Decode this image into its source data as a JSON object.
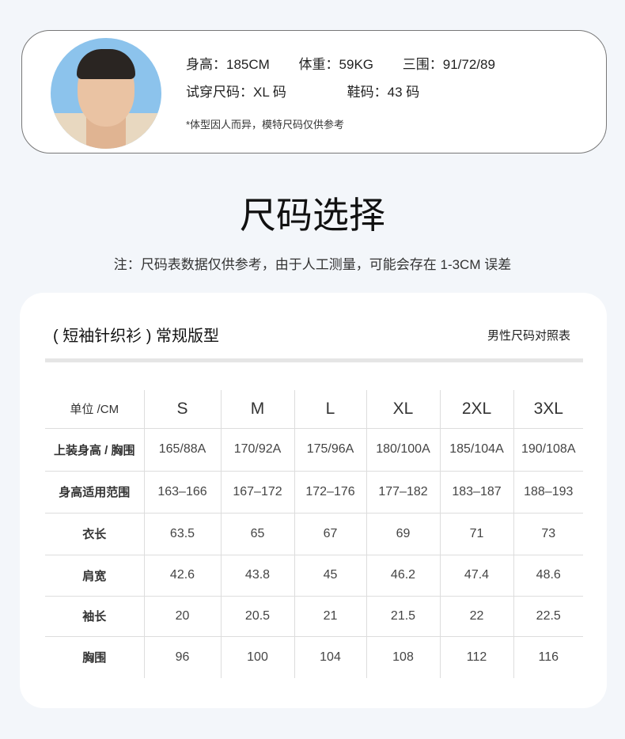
{
  "model": {
    "height_label": "身高：",
    "height": "185CM",
    "weight_label": "体重：",
    "weight": "59KG",
    "measure_label": "三围：",
    "measure": "91/72/89",
    "size_label": "试穿尺码：",
    "size": "XL 码",
    "shoe_label": "鞋码：",
    "shoe": "43 码",
    "note": "*体型因人而异，模特尺码仅供参考"
  },
  "title": "尺码选择",
  "subtitle": "注：尺码表数据仅供参考，由于人工测量，可能会存在 1-3CM 误差",
  "card": {
    "title": "( 短袖针织衫 ) 常规版型",
    "right": "男性尺码对照表"
  },
  "table": {
    "headers": [
      "单位 /CM",
      "S",
      "M",
      "L",
      "XL",
      "2XL",
      "3XL"
    ],
    "rows": [
      [
        "上装身高 / 胸围",
        "165/88A",
        "170/92A",
        "175/96A",
        "180/100A",
        "185/104A",
        "190/108A"
      ],
      [
        "身高适用范围",
        "163–166",
        "167–172",
        "172–176",
        "177–182",
        "183–187",
        "188–193"
      ],
      [
        "衣长",
        "63.5",
        "65",
        "67",
        "69",
        "71",
        "73"
      ],
      [
        "肩宽",
        "42.6",
        "43.8",
        "45",
        "46.2",
        "47.4",
        "48.6"
      ],
      [
        "袖长",
        "20",
        "20.5",
        "21",
        "21.5",
        "22",
        "22.5"
      ],
      [
        "胸围",
        "96",
        "100",
        "104",
        "108",
        "112",
        "116"
      ]
    ]
  }
}
